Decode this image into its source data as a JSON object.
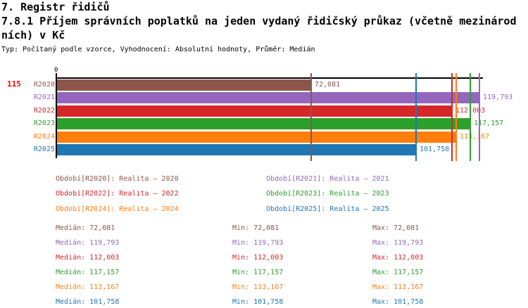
{
  "header": {
    "title": "7. Registr řidičů",
    "subtitle_lines": [
      "7.8.1 Příjem správních poplatků na jeden vydaný řidičský průkaz (včetně mezinárod",
      "ních) v Kč"
    ],
    "meta": "Typ: Počítaný podle vzorce, Vyhodnocení: Absolutní hodnoty, Průměr: Medián"
  },
  "chart_data": {
    "type": "bar",
    "orientation": "horizontal",
    "title": "7.8.1 Příjem správních poplatků na jeden vydaný řidičský průkaz (včetně mezinárodních) v Kč",
    "categories": [
      "R2020",
      "R2021",
      "R2022",
      "R2023",
      "R2024",
      "R2025"
    ],
    "values": [
      72081,
      119793,
      112003,
      117157,
      113167,
      101758
    ],
    "value_labels": [
      "72,081",
      "119,793",
      "112,003",
      "117,157",
      "113,167",
      "101,758"
    ],
    "colors": [
      "#8c564b",
      "#9467bd",
      "#d62728",
      "#2ca02c",
      "#ff7f0e",
      "#1f77b4"
    ],
    "series_names": [
      "Realita – 2020",
      "Realita – 2021",
      "Realita – 2022",
      "Realita – 2023",
      "Realita – 2024",
      "Realita – 2025"
    ],
    "marker_line_values": [
      72081,
      119793,
      112003,
      117157,
      113167,
      101758
    ],
    "xlim": [
      0,
      121000
    ],
    "origin_label": "0",
    "row_number_label": "115",
    "row_number_color": "#ff0000",
    "grid": false,
    "legend_position": "below"
  },
  "legend": {
    "left_column": [
      {
        "label": "Období[R2020]: Realita – 2020",
        "color": "#8c564b"
      },
      {
        "label": "Období[R2022]: Realita – 2022",
        "color": "#d62728"
      },
      {
        "label": "Období[R2024]: Realita – 2024",
        "color": "#ff7f0e"
      }
    ],
    "right_column": [
      {
        "label": "Období[R2021]: Realita – 2021",
        "color": "#9467bd"
      },
      {
        "label": "Období[R2023]: Realita – 2023",
        "color": "#2ca02c"
      },
      {
        "label": "Období[R2025]: Realita – 2025",
        "color": "#1f77b4"
      }
    ]
  },
  "stats": {
    "rows": [
      {
        "median_label": "Medián: 72,081",
        "min_label": "Min: 72,081",
        "max_label": "Max: 72,081",
        "color": "#8c564b"
      },
      {
        "median_label": "Medián: 119,793",
        "min_label": "Min: 119,793",
        "max_label": "Max: 119,793",
        "color": "#9467bd"
      },
      {
        "median_label": "Medián: 112,003",
        "min_label": "Min: 112,003",
        "max_label": "Max: 112,003",
        "color": "#d62728"
      },
      {
        "median_label": "Medián: 117,157",
        "min_label": "Min: 117,157",
        "max_label": "Max: 117,157",
        "color": "#2ca02c"
      },
      {
        "median_label": "Medián: 113,167",
        "min_label": "Min: 113,167",
        "max_label": "Max: 113,167",
        "color": "#ff7f0e"
      },
      {
        "median_label": "Medián: 101,758",
        "min_label": "Min: 101,758",
        "max_label": "Max: 101,758",
        "color": "#1f77b4"
      }
    ]
  }
}
